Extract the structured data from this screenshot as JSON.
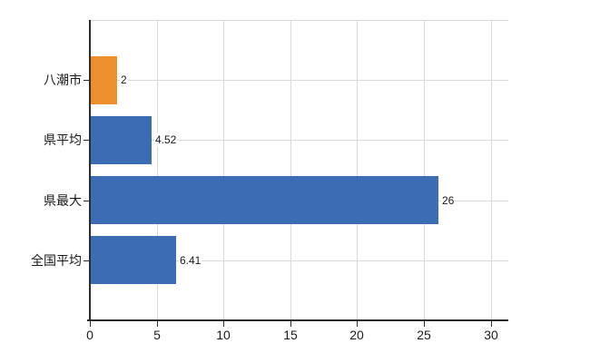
{
  "chart_data": {
    "type": "bar",
    "orientation": "horizontal",
    "title": "",
    "xlabel": "",
    "ylabel": "",
    "categories": [
      "八潮市",
      "県平均",
      "県最大",
      "全国平均"
    ],
    "values": [
      2,
      4.52,
      26,
      6.41
    ],
    "value_labels": [
      "2",
      "4.52",
      "26",
      "6.41"
    ],
    "x_ticks": [
      0,
      5,
      10,
      15,
      20,
      25,
      30
    ],
    "x_tick_labels": [
      "0",
      "5",
      "10",
      "15",
      "20",
      "25",
      "30"
    ],
    "xlim": [
      0,
      31.3
    ],
    "grid": "on",
    "legend": "none",
    "colors": {
      "highlight_bar": "#ee8f2e",
      "default_bar": "#3c6cb4",
      "grid_line": "#d9d9d9",
      "axis_line": "#2b2b2b",
      "text": "#1a1a1a",
      "background": "#ffffff"
    },
    "bar_colors": [
      "#ee8f2e",
      "#3c6cb4",
      "#3c6cb4",
      "#3c6cb4"
    ]
  }
}
